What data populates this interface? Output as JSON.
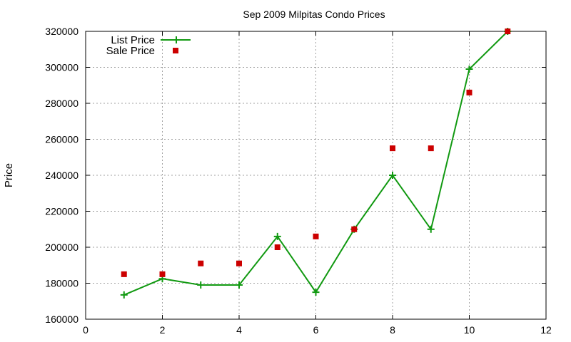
{
  "chart_data": {
    "type": "line",
    "title": "Sep 2009 Milpitas Condo Prices",
    "xlabel": "",
    "ylabel": "Price",
    "xlim": [
      0,
      12
    ],
    "ylim": [
      160000,
      320000
    ],
    "x_ticks": [
      "0",
      "2",
      "4",
      "6",
      "8",
      "10",
      "12"
    ],
    "y_ticks": [
      "160000",
      "180000",
      "200000",
      "220000",
      "240000",
      "260000",
      "280000",
      "300000",
      "320000"
    ],
    "grid": true,
    "legend_position": "top-left",
    "series": [
      {
        "name": "List Price",
        "style": "line-with-plus-markers",
        "color": "#119911",
        "points": [
          [
            1,
            173500
          ],
          [
            2,
            182500
          ],
          [
            3,
            179000
          ],
          [
            4,
            179000
          ],
          [
            5,
            206000
          ],
          [
            6,
            175000
          ],
          [
            7,
            210000
          ],
          [
            8,
            240000
          ],
          [
            9,
            210000
          ],
          [
            10,
            299000
          ],
          [
            11,
            320000
          ]
        ]
      },
      {
        "name": "Sale Price",
        "style": "square-markers",
        "color": "#cc0000",
        "points": [
          [
            1,
            185000
          ],
          [
            2,
            185000
          ],
          [
            3,
            191000
          ],
          [
            4,
            191000
          ],
          [
            5,
            200000
          ],
          [
            6,
            206000
          ],
          [
            7,
            210000
          ],
          [
            8,
            255000
          ],
          [
            9,
            255000
          ],
          [
            10,
            286000
          ],
          [
            11,
            320000
          ]
        ]
      }
    ]
  }
}
